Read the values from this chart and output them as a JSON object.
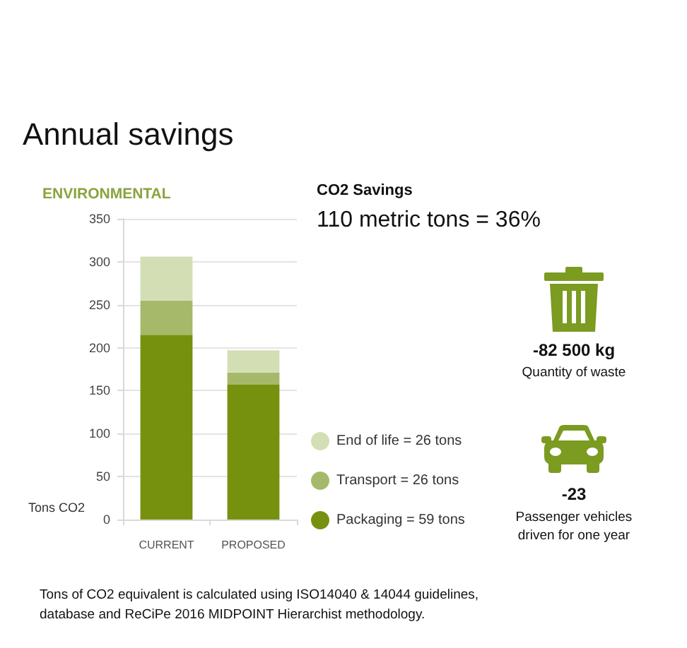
{
  "chart_data": {
    "type": "bar",
    "title": "Annual savings",
    "subtitle": "ENVIRONMENTAL",
    "ylabel": "Tons CO2",
    "categories": [
      "CURRENT",
      "PROPOSED"
    ],
    "series": [
      {
        "name": "Packaging = 59 tons",
        "color": "#76910d",
        "values": [
          215,
          157
        ]
      },
      {
        "name": "Transport = 26 tons",
        "color": "#a6b96a",
        "values": [
          40,
          14
        ]
      },
      {
        "name": "End of life = 26 tons",
        "color": "#d4deb5",
        "values": [
          51,
          26
        ]
      }
    ],
    "stacked": true,
    "ylim": [
      0,
      350
    ],
    "yticks": [
      0,
      50,
      100,
      150,
      200,
      250,
      300,
      350
    ],
    "grid": "y",
    "legend": "right",
    "annotations": [
      "CO2 Savings",
      "110 metric tons = 36%",
      "-82 500 kg",
      "Quantity of waste",
      "-23",
      "Passenger vehicles driven for one year",
      "Tons of CO2 equivalent is calculated using ISO14040 & 14044 guidelines, database and ReCiPe 2016 MIDPOINT Hierarchist methodology."
    ]
  }
}
